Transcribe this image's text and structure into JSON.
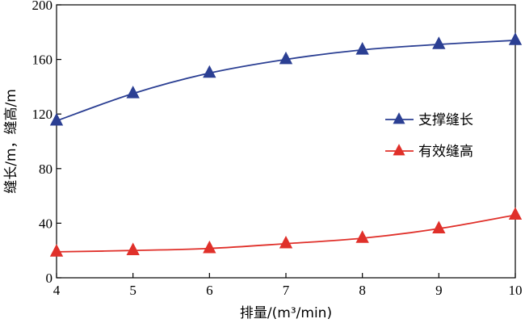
{
  "chart_data": {
    "type": "line",
    "title": "",
    "xlabel": "排量/(m³/min)",
    "ylabel": "缝长/m，缝高/m",
    "xlim": [
      4,
      10
    ],
    "ylim": [
      0,
      200
    ],
    "x_ticks": [
      "4",
      "5",
      "6",
      "7",
      "8",
      "9",
      "10"
    ],
    "y_ticks": [
      "0",
      "40",
      "80",
      "120",
      "160",
      "200"
    ],
    "grid": false,
    "legend_position": "right",
    "x": [
      4,
      5,
      6,
      7,
      8,
      9,
      10
    ],
    "series": [
      {
        "name": "支撑缝长",
        "values": [
          115,
          135,
          150,
          160,
          167,
          171,
          174
        ],
        "color": "#2b3f93",
        "marker": "triangle"
      },
      {
        "name": "有效缝高",
        "values": [
          19,
          20,
          21.5,
          25,
          29,
          36,
          46
        ],
        "color": "#e0302a",
        "marker": "triangle"
      }
    ]
  }
}
